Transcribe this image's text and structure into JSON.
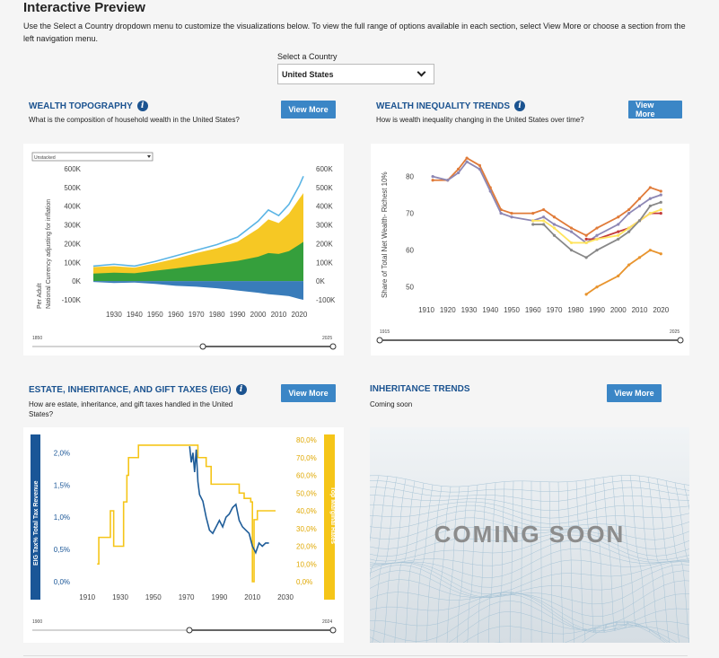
{
  "page": {
    "title": "Interactive Preview",
    "intro": "Use the Select a Country dropdown menu to customize the visualizations below. To view the full range of options available in each section, select View More or choose a section from the left navigation menu.",
    "country_label": "Select a Country",
    "country_value": "United States"
  },
  "sections": {
    "topography": {
      "title": "WEALTH TOPOGRAPHY",
      "subtitle": "What is the composition of household wealth in the United States?",
      "button": "View More",
      "dropdown": "Unstacked",
      "slider_start": "1850",
      "slider_end": "2025"
    },
    "inequality": {
      "title": "WEALTH INEQUALITY TRENDS",
      "subtitle": "How is wealth inequality changing in the United States over time?",
      "button": "View More",
      "slider_start": "1915",
      "slider_end": "2025"
    },
    "eig": {
      "title": "ESTATE, INHERITANCE, AND GIFT TAXES (EIG)",
      "subtitle": "How are estate, inheritance, and gift taxes handled in the United States?",
      "button": "View More",
      "slider_start": "1900",
      "slider_end": "2024",
      "left_band_label": "EIG Tax% Total Tax Revenue",
      "right_band_label": "Top Marginal Rates"
    },
    "inheritance": {
      "title": "INHERITANCE TRENDS",
      "subtitle": "Coming soon",
      "button": "View More",
      "coming_soon": "COMING SOON"
    }
  },
  "chart_data": [
    {
      "type": "area",
      "ylabel": "Per Adult\nNational Currency adjusting for inflation",
      "x_ticks": [
        "1930",
        "1940",
        "1950",
        "1960",
        "1970",
        "1980",
        "1990",
        "2000",
        "2010",
        "2020"
      ],
      "y_ticks": [
        "600K",
        "500K",
        "400K",
        "300K",
        "200K",
        "100K",
        "0K",
        "-100K"
      ],
      "ylim": [
        -100000,
        600000
      ],
      "x": [
        1920,
        1930,
        1940,
        1950,
        1960,
        1970,
        1980,
        1990,
        2000,
        2005,
        2010,
        2015,
        2020,
        2022
      ],
      "series": [
        {
          "name": "",
          "color": "#2a9d3e",
          "values": [
            40000,
            45000,
            42000,
            55000,
            68000,
            82000,
            95000,
            108000,
            130000,
            150000,
            145000,
            160000,
            195000,
            210000
          ]
        },
        {
          "name": "",
          "color": "#f5c518",
          "values": [
            75000,
            80000,
            72000,
            95000,
            120000,
            150000,
            175000,
            210000,
            280000,
            330000,
            310000,
            360000,
            440000,
            470000
          ]
        },
        {
          "name": "",
          "color": "#2e75b6",
          "values": [
            -5000,
            -10000,
            -8000,
            -15000,
            -25000,
            -30000,
            -38000,
            -50000,
            -62000,
            -70000,
            -75000,
            -80000,
            -95000,
            -100000
          ]
        },
        {
          "name": "",
          "color": "#5ab4e5",
          "values": [
            80000,
            90000,
            80000,
            105000,
            135000,
            165000,
            195000,
            235000,
            320000,
            380000,
            350000,
            410000,
            510000,
            560000
          ]
        }
      ]
    },
    {
      "type": "line",
      "ylabel": "Share of Total Net Wealth- Richest 10%",
      "x_ticks": [
        "1910",
        "1920",
        "1930",
        "1940",
        "1950",
        "1960",
        "1970",
        "1980",
        "1990",
        "2000",
        "2010",
        "2020"
      ],
      "y_ticks": [
        "80",
        "70",
        "60",
        "50"
      ],
      "ylim": [
        47,
        86
      ],
      "x": [
        1913,
        1920,
        1925,
        1929,
        1935,
        1940,
        1945,
        1950,
        1960,
        1965,
        1970,
        1978,
        1985,
        1990,
        2000,
        2005,
        2010,
        2015,
        2020
      ],
      "series": [
        {
          "name": "",
          "color": "#e07b39",
          "values": [
            79,
            79,
            82,
            85,
            83,
            77,
            71,
            70,
            70,
            71,
            69,
            66,
            64,
            66,
            69,
            71,
            74,
            77,
            76
          ]
        },
        {
          "name": "",
          "color": "#8d87b4",
          "values": [
            80,
            79,
            81,
            84,
            82,
            76,
            70,
            69,
            68,
            69,
            67,
            65,
            62,
            64,
            67,
            70,
            72,
            74,
            75
          ]
        },
        {
          "name": "",
          "color": "#c33b3b",
          "values": [
            null,
            null,
            null,
            null,
            null,
            null,
            null,
            null,
            null,
            null,
            null,
            null,
            63,
            63,
            65,
            66,
            68,
            70,
            70
          ]
        },
        {
          "name": "",
          "color": "#ffe45e",
          "values": [
            null,
            null,
            null,
            null,
            null,
            null,
            null,
            null,
            68,
            68,
            66,
            62,
            62,
            63,
            64,
            66,
            68,
            70,
            71
          ]
        },
        {
          "name": "",
          "color": "#888888",
          "values": [
            null,
            null,
            null,
            null,
            null,
            null,
            null,
            null,
            67,
            67,
            64,
            60,
            58,
            60,
            63,
            65,
            68,
            72,
            73
          ]
        },
        {
          "name": "",
          "color": "#e8942e",
          "values": [
            null,
            null,
            null,
            null,
            null,
            null,
            null,
            null,
            null,
            null,
            null,
            null,
            48,
            50,
            53,
            56,
            58,
            60,
            59
          ]
        }
      ]
    },
    {
      "type": "line",
      "ylabel": "EIG Tax% Total Tax Revenue",
      "y2label": "Top Marginal Rates",
      "x_ticks": [
        "1910",
        "1930",
        "1950",
        "1970",
        "1990",
        "2010",
        "2030"
      ],
      "y_ticks": [
        "2,0%",
        "1,5%",
        "1,0%",
        "0,5%",
        "0,0%"
      ],
      "y2_ticks": [
        "80,0%",
        "70,0%",
        "60,0%",
        "50,0%",
        "40,0%",
        "30,0%",
        "20,0%",
        "10,0%",
        "0,0%"
      ],
      "ylim": [
        0,
        2.2
      ],
      "y2lim": [
        0,
        0.8
      ],
      "series": [
        {
          "name": "",
          "color": "#f5c518",
          "axis": "right",
          "x": [
            1916,
            1917,
            1918,
            1924,
            1925,
            1926,
            1931,
            1932,
            1934,
            1935,
            1941,
            1976,
            1977,
            1982,
            1985,
            2001,
            2002,
            2005,
            2009,
            2010,
            2011,
            2013,
            2024
          ],
          "values": [
            0.1,
            0.25,
            0.25,
            0.4,
            0.4,
            0.2,
            0.2,
            0.45,
            0.6,
            0.7,
            0.77,
            0.77,
            0.7,
            0.65,
            0.55,
            0.55,
            0.5,
            0.47,
            0.45,
            0.0,
            0.35,
            0.4,
            0.4
          ]
        },
        {
          "name": "",
          "color": "#1f5d99",
          "axis": "left",
          "x": [
            1972,
            1973,
            1974,
            1975,
            1976,
            1977,
            1978,
            1980,
            1982,
            1984,
            1986,
            1988,
            1990,
            1992,
            1994,
            1996,
            1998,
            2000,
            2002,
            2004,
            2006,
            2008,
            2010,
            2012,
            2014,
            2016,
            2018,
            2020
          ],
          "values": [
            2.1,
            1.85,
            2.0,
            1.7,
            2.05,
            1.55,
            1.35,
            1.25,
            1.0,
            0.8,
            0.75,
            0.85,
            0.95,
            0.85,
            1.0,
            1.05,
            1.15,
            1.2,
            0.95,
            0.85,
            0.8,
            0.75,
            0.55,
            0.45,
            0.6,
            0.55,
            0.6,
            0.6
          ]
        }
      ]
    }
  ]
}
